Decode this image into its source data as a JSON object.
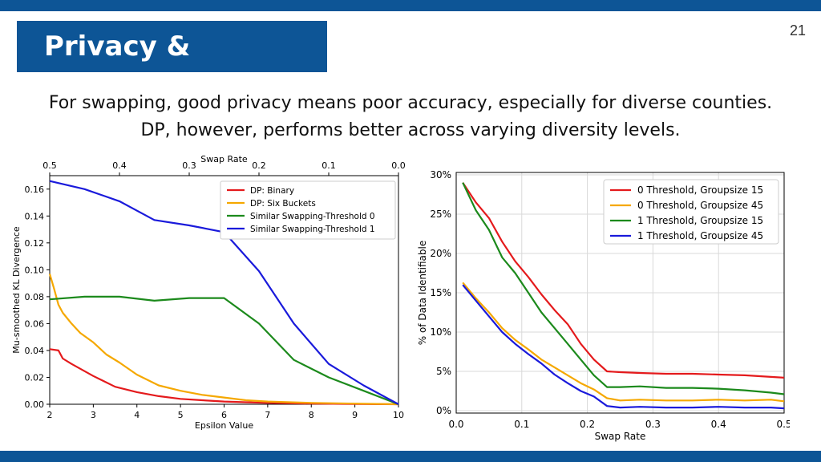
{
  "slide": {
    "title": "Privacy & Accuracy",
    "page_number": "21",
    "subtitle_line1": "For swapping, good privacy means poor accuracy, especially for diverse counties.",
    "subtitle_line2": "DP, however, performs better across varying diversity levels."
  },
  "chart_data": [
    {
      "type": "line",
      "xlabel": "Epsilon Value",
      "ylabel": "Mu-smoothed KL Divergence",
      "x2label": "Swap Rate",
      "xlim": [
        2,
        10
      ],
      "ylim": [
        0,
        0.17
      ],
      "xticks": [
        2,
        3,
        4,
        5,
        6,
        7,
        8,
        9,
        10
      ],
      "yticks": [
        0.0,
        0.02,
        0.04,
        0.06,
        0.08,
        0.1,
        0.12,
        0.14,
        0.16
      ],
      "ytick_labels": [
        "0.00",
        "0.02",
        "0.04",
        "0.06",
        "0.08",
        "0.10",
        "0.12",
        "0.14",
        "0.16"
      ],
      "x2ticks": [
        0.5,
        0.4,
        0.3,
        0.2,
        0.1,
        0.0
      ],
      "x2tick_labels": [
        "0.5",
        "0.4",
        "0.3",
        "0.2",
        "0.1",
        "0.0"
      ],
      "x2lim": [
        0.5,
        0.0
      ],
      "legend_position": "top-right",
      "grid": false,
      "series": [
        {
          "name": "DP: Binary",
          "color": "#e41a1c",
          "axis": "bottom",
          "x": [
            2.0,
            2.2,
            2.3,
            2.5,
            3.0,
            3.5,
            4.0,
            4.5,
            5.0,
            5.5,
            6.0,
            6.5,
            7.0,
            8.0,
            9.0,
            10.0
          ],
          "y": [
            0.041,
            0.04,
            0.034,
            0.03,
            0.021,
            0.013,
            0.009,
            0.006,
            0.004,
            0.003,
            0.002,
            0.0015,
            0.001,
            0.0005,
            0.0002,
            0.0
          ]
        },
        {
          "name": "DP: Six Buckets",
          "color": "#f5a800",
          "axis": "bottom",
          "x": [
            2.0,
            2.1,
            2.2,
            2.3,
            2.5,
            2.7,
            3.0,
            3.3,
            3.6,
            4.0,
            4.5,
            5.0,
            5.5,
            6.0,
            6.5,
            7.0,
            8.0,
            9.0,
            10.0
          ],
          "y": [
            0.097,
            0.086,
            0.074,
            0.068,
            0.06,
            0.053,
            0.046,
            0.037,
            0.031,
            0.022,
            0.014,
            0.01,
            0.007,
            0.005,
            0.003,
            0.002,
            0.001,
            0.0005,
            0.0
          ]
        },
        {
          "name": "Similar Swapping-Threshold 0",
          "color": "#1c8a1c",
          "axis": "top",
          "x": [
            0.5,
            0.45,
            0.4,
            0.35,
            0.3,
            0.25,
            0.2,
            0.15,
            0.1,
            0.05,
            0.0
          ],
          "y": [
            0.078,
            0.08,
            0.08,
            0.077,
            0.079,
            0.079,
            0.06,
            0.033,
            0.02,
            0.01,
            0.0
          ]
        },
        {
          "name": "Similar Swapping-Threshold 1",
          "color": "#1a1adb",
          "axis": "top",
          "x": [
            0.5,
            0.45,
            0.4,
            0.35,
            0.3,
            0.25,
            0.2,
            0.15,
            0.1,
            0.05,
            0.0
          ],
          "y": [
            0.166,
            0.16,
            0.151,
            0.137,
            0.133,
            0.128,
            0.099,
            0.06,
            0.03,
            0.014,
            0.0
          ]
        }
      ]
    },
    {
      "type": "line",
      "xlabel": "Swap Rate",
      "ylabel": "% of Data Identifiable",
      "xlim": [
        0.0,
        0.5
      ],
      "ylim": [
        -0.3,
        30.3
      ],
      "xticks": [
        0.0,
        0.1,
        0.2,
        0.3,
        0.4,
        0.5
      ],
      "xtick_labels": [
        "0.0",
        "0.1",
        "0.2",
        "0.3",
        "0.4",
        "0.5"
      ],
      "yticks": [
        0,
        5,
        10,
        15,
        20,
        25,
        30
      ],
      "ytick_labels": [
        "0%",
        "5%",
        "10%",
        "15%",
        "20%",
        "25%",
        "30%"
      ],
      "legend_position": "top-right",
      "grid": true,
      "series": [
        {
          "name": "0 Threshold, Groupsize 15",
          "color": "#e41a1c",
          "x": [
            0.01,
            0.03,
            0.05,
            0.07,
            0.09,
            0.11,
            0.13,
            0.15,
            0.17,
            0.19,
            0.21,
            0.23,
            0.25,
            0.28,
            0.32,
            0.36,
            0.4,
            0.44,
            0.48,
            0.5
          ],
          "y": [
            29.0,
            26.5,
            24.5,
            21.5,
            19.0,
            17.0,
            14.8,
            12.8,
            11.0,
            8.5,
            6.5,
            5.0,
            4.9,
            4.8,
            4.7,
            4.7,
            4.6,
            4.5,
            4.3,
            4.2
          ]
        },
        {
          "name": "0 Threshold, Groupsize 45",
          "color": "#f5a800",
          "x": [
            0.01,
            0.03,
            0.05,
            0.07,
            0.09,
            0.11,
            0.13,
            0.15,
            0.17,
            0.19,
            0.21,
            0.23,
            0.25,
            0.28,
            0.32,
            0.36,
            0.4,
            0.44,
            0.48,
            0.5
          ],
          "y": [
            16.3,
            14.3,
            12.5,
            10.5,
            9.0,
            7.8,
            6.5,
            5.5,
            4.5,
            3.5,
            2.7,
            1.6,
            1.3,
            1.4,
            1.3,
            1.3,
            1.4,
            1.3,
            1.4,
            1.2
          ]
        },
        {
          "name": "1 Threshold, Groupsize 15",
          "color": "#1c8a1c",
          "x": [
            0.01,
            0.03,
            0.05,
            0.07,
            0.09,
            0.11,
            0.13,
            0.15,
            0.17,
            0.19,
            0.21,
            0.23,
            0.25,
            0.28,
            0.32,
            0.36,
            0.4,
            0.44,
            0.48,
            0.5
          ],
          "y": [
            29.0,
            25.5,
            23.0,
            19.5,
            17.5,
            15.0,
            12.5,
            10.5,
            8.5,
            6.5,
            4.5,
            3.0,
            3.0,
            3.1,
            2.9,
            2.9,
            2.8,
            2.6,
            2.3,
            2.1
          ]
        },
        {
          "name": "1 Threshold, Groupsize 45",
          "color": "#1a1adb",
          "x": [
            0.01,
            0.03,
            0.05,
            0.07,
            0.09,
            0.11,
            0.13,
            0.15,
            0.17,
            0.19,
            0.21,
            0.23,
            0.25,
            0.28,
            0.32,
            0.36,
            0.4,
            0.44,
            0.48,
            0.5
          ],
          "y": [
            16.0,
            14.0,
            12.0,
            10.0,
            8.5,
            7.2,
            6.0,
            4.6,
            3.5,
            2.5,
            1.8,
            0.6,
            0.4,
            0.5,
            0.4,
            0.4,
            0.5,
            0.4,
            0.4,
            0.3
          ]
        }
      ]
    }
  ]
}
